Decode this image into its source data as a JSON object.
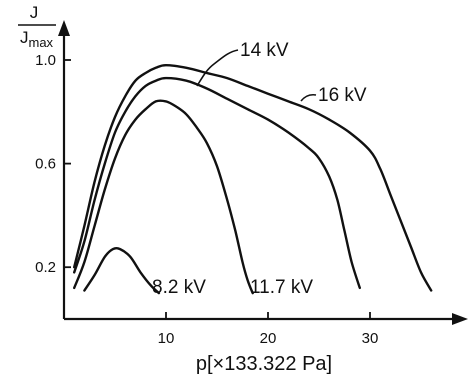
{
  "chart_data": {
    "type": "line",
    "xlabel": "p[×133.322 Pa]",
    "ylabel_num": "J",
    "ylabel_den": "J",
    "ylabel_den_sub": "max",
    "xticks": [
      10,
      20,
      30
    ],
    "yticks": [
      0.2,
      0.6,
      1.0
    ],
    "ytick_labels": [
      "0.2",
      "0.6",
      "1.0"
    ],
    "xlim": [
      0,
      39
    ],
    "ylim": [
      0,
      1.1
    ],
    "grid": false,
    "legend": "none",
    "series": [
      {
        "name": "8.2 kV",
        "x": [
          2.0,
          3.0,
          4.0,
          4.8,
          5.5,
          6.5,
          7.5,
          8.5,
          9.3
        ],
        "y": [
          0.11,
          0.17,
          0.24,
          0.27,
          0.27,
          0.24,
          0.18,
          0.13,
          0.1
        ]
      },
      {
        "name": "11.7 kV",
        "x": [
          1.0,
          2.0,
          3.0,
          4.0,
          5.0,
          6.0,
          7.0,
          8.0,
          9.0,
          10.0,
          11.0,
          12.0,
          13.0,
          14.0,
          15.0,
          16.0,
          16.8,
          17.5,
          18.0,
          18.5
        ],
        "y": [
          0.12,
          0.22,
          0.36,
          0.5,
          0.62,
          0.71,
          0.77,
          0.81,
          0.84,
          0.84,
          0.82,
          0.79,
          0.74,
          0.68,
          0.59,
          0.46,
          0.34,
          0.22,
          0.15,
          0.1
        ]
      },
      {
        "name": "14 kV",
        "x": [
          1.0,
          2.0,
          3.0,
          4.0,
          5.0,
          6.0,
          7.0,
          8.0,
          9.0,
          10.0,
          12.0,
          14.0,
          16.0,
          18.0,
          20.0,
          22.0,
          24.0,
          25.0,
          26.0,
          26.8,
          27.5,
          28.2,
          29.0
        ],
        "y": [
          0.18,
          0.3,
          0.46,
          0.6,
          0.72,
          0.8,
          0.86,
          0.9,
          0.92,
          0.93,
          0.92,
          0.89,
          0.85,
          0.81,
          0.77,
          0.72,
          0.66,
          0.62,
          0.55,
          0.46,
          0.34,
          0.22,
          0.12
        ]
      },
      {
        "name": "16 kV",
        "x": [
          1.0,
          2.0,
          3.0,
          4.0,
          5.0,
          6.0,
          7.0,
          8.0,
          9.0,
          10.0,
          12.0,
          14.0,
          16.0,
          18.0,
          20.0,
          22.0,
          24.0,
          26.0,
          28.0,
          30.0,
          31.0,
          32.0,
          33.0,
          34.0,
          35.0,
          36.0
        ],
        "y": [
          0.2,
          0.36,
          0.53,
          0.67,
          0.78,
          0.86,
          0.92,
          0.95,
          0.97,
          0.98,
          0.97,
          0.95,
          0.93,
          0.9,
          0.87,
          0.84,
          0.81,
          0.77,
          0.72,
          0.65,
          0.58,
          0.48,
          0.38,
          0.28,
          0.18,
          0.11
        ]
      }
    ]
  }
}
